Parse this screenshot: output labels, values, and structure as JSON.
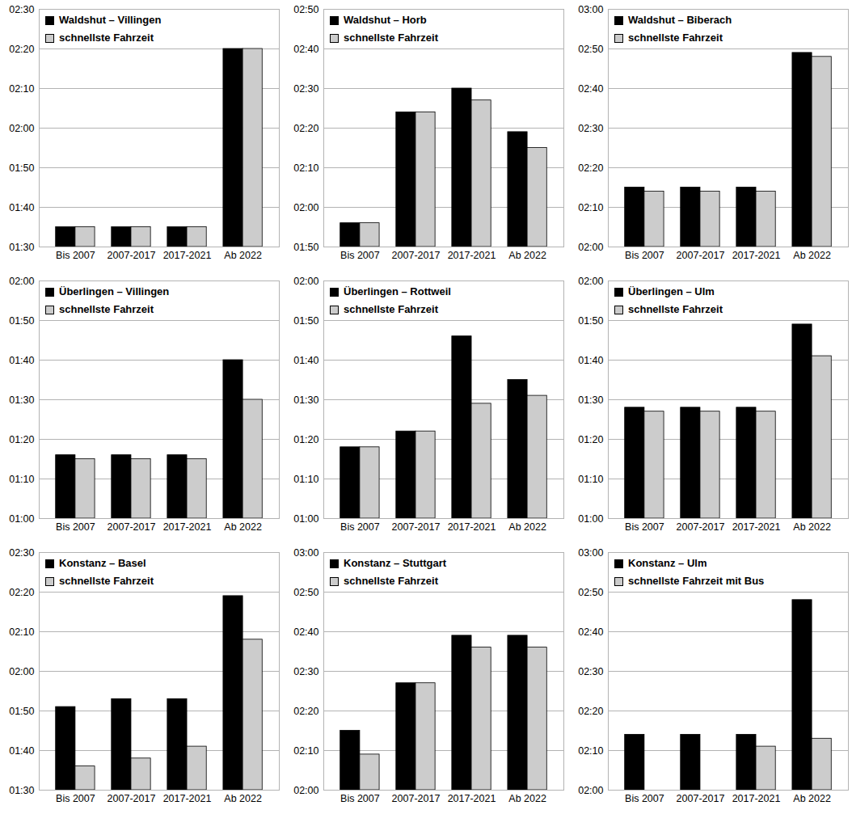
{
  "chart_data": [
    {
      "type": "bar",
      "categories": [
        "Bis 2007",
        "2007-2017",
        "2017-2021",
        "Ab 2022"
      ],
      "series": [
        {
          "name": "Waldshut – Villingen",
          "color": "#000000",
          "values": [
            95,
            95,
            95,
            140
          ]
        },
        {
          "name": "schnellste Fahrzeit",
          "color": "#cccccc",
          "values": [
            95,
            95,
            95,
            140
          ]
        }
      ],
      "ylim": [
        90,
        150
      ],
      "yticks": [
        {
          "value": 90,
          "label": "01:30"
        },
        {
          "value": 100,
          "label": "01:40"
        },
        {
          "value": 110,
          "label": "01:50"
        },
        {
          "value": 120,
          "label": "02:00"
        },
        {
          "value": 130,
          "label": "02:10"
        },
        {
          "value": 140,
          "label": "02:20"
        },
        {
          "value": 150,
          "label": "02:30"
        }
      ],
      "grid": true,
      "legend": "top-left"
    },
    {
      "type": "bar",
      "categories": [
        "Bis 2007",
        "2007-2017",
        "2017-2021",
        "Ab 2022"
      ],
      "series": [
        {
          "name": "Waldshut – Horb",
          "color": "#000000",
          "values": [
            116,
            144,
            150,
            139
          ]
        },
        {
          "name": "schnellste Fahrzeit",
          "color": "#cccccc",
          "values": [
            116,
            144,
            147,
            135
          ]
        }
      ],
      "ylim": [
        110,
        170
      ],
      "yticks": [
        {
          "value": 110,
          "label": "01:50"
        },
        {
          "value": 120,
          "label": "02:00"
        },
        {
          "value": 130,
          "label": "02:10"
        },
        {
          "value": 140,
          "label": "02:20"
        },
        {
          "value": 150,
          "label": "02:30"
        },
        {
          "value": 160,
          "label": "02:40"
        },
        {
          "value": 170,
          "label": "02:50"
        }
      ],
      "grid": true,
      "legend": "top-left"
    },
    {
      "type": "bar",
      "categories": [
        "Bis 2007",
        "2007-2017",
        "2017-2021",
        "Ab 2022"
      ],
      "series": [
        {
          "name": "Waldshut – Biberach",
          "color": "#000000",
          "values": [
            135,
            135,
            135,
            169
          ]
        },
        {
          "name": "schnellste Fahrzeit",
          "color": "#cccccc",
          "values": [
            134,
            134,
            134,
            168
          ]
        }
      ],
      "ylim": [
        120,
        180
      ],
      "yticks": [
        {
          "value": 120,
          "label": "02:00"
        },
        {
          "value": 130,
          "label": "02:10"
        },
        {
          "value": 140,
          "label": "02:20"
        },
        {
          "value": 150,
          "label": "02:30"
        },
        {
          "value": 160,
          "label": "02:40"
        },
        {
          "value": 170,
          "label": "02:50"
        },
        {
          "value": 180,
          "label": "03:00"
        }
      ],
      "grid": true,
      "legend": "top-left"
    },
    {
      "type": "bar",
      "categories": [
        "Bis 2007",
        "2007-2017",
        "2017-2021",
        "Ab 2022"
      ],
      "series": [
        {
          "name": "Überlingen – Villingen",
          "color": "#000000",
          "values": [
            76,
            76,
            76,
            100
          ]
        },
        {
          "name": "schnellste Fahrzeit",
          "color": "#cccccc",
          "values": [
            75,
            75,
            75,
            90
          ]
        }
      ],
      "ylim": [
        60,
        120
      ],
      "yticks": [
        {
          "value": 60,
          "label": "01:00"
        },
        {
          "value": 70,
          "label": "01:10"
        },
        {
          "value": 80,
          "label": "01:20"
        },
        {
          "value": 90,
          "label": "01:30"
        },
        {
          "value": 100,
          "label": "01:40"
        },
        {
          "value": 110,
          "label": "01:50"
        },
        {
          "value": 120,
          "label": "02:00"
        }
      ],
      "grid": true,
      "legend": "top-left"
    },
    {
      "type": "bar",
      "categories": [
        "Bis 2007",
        "2007-2017",
        "2017-2021",
        "Ab 2022"
      ],
      "series": [
        {
          "name": "Überlingen – Rottweil",
          "color": "#000000",
          "values": [
            78,
            82,
            106,
            95
          ]
        },
        {
          "name": "schnellste Fahrzeit",
          "color": "#cccccc",
          "values": [
            78,
            82,
            89,
            91
          ]
        }
      ],
      "ylim": [
        60,
        120
      ],
      "yticks": [
        {
          "value": 60,
          "label": "01:00"
        },
        {
          "value": 70,
          "label": "01:10"
        },
        {
          "value": 80,
          "label": "01:20"
        },
        {
          "value": 90,
          "label": "01:30"
        },
        {
          "value": 100,
          "label": "01:40"
        },
        {
          "value": 110,
          "label": "01:50"
        },
        {
          "value": 120,
          "label": "02:00"
        }
      ],
      "grid": true,
      "legend": "top-left"
    },
    {
      "type": "bar",
      "categories": [
        "Bis 2007",
        "2007-2017",
        "2017-2021",
        "Ab 2022"
      ],
      "series": [
        {
          "name": "Überlingen – Ulm",
          "color": "#000000",
          "values": [
            88,
            88,
            88,
            109
          ]
        },
        {
          "name": "schnellste Fahrzeit",
          "color": "#cccccc",
          "values": [
            87,
            87,
            87,
            101
          ]
        }
      ],
      "ylim": [
        60,
        120
      ],
      "yticks": [
        {
          "value": 60,
          "label": "01:00"
        },
        {
          "value": 70,
          "label": "01:10"
        },
        {
          "value": 80,
          "label": "01:20"
        },
        {
          "value": 90,
          "label": "01:30"
        },
        {
          "value": 100,
          "label": "01:40"
        },
        {
          "value": 110,
          "label": "01:50"
        },
        {
          "value": 120,
          "label": "02:00"
        }
      ],
      "grid": true,
      "legend": "top-left"
    },
    {
      "type": "bar",
      "categories": [
        "Bis 2007",
        "2007-2017",
        "2017-2021",
        "Ab 2022"
      ],
      "series": [
        {
          "name": "Konstanz – Basel",
          "color": "#000000",
          "values": [
            111,
            113,
            113,
            139
          ]
        },
        {
          "name": "schnellste Fahrzeit",
          "color": "#cccccc",
          "values": [
            96,
            98,
            101,
            128
          ]
        }
      ],
      "ylim": [
        90,
        150
      ],
      "yticks": [
        {
          "value": 90,
          "label": "01:30"
        },
        {
          "value": 100,
          "label": "01:40"
        },
        {
          "value": 110,
          "label": "01:50"
        },
        {
          "value": 120,
          "label": "02:00"
        },
        {
          "value": 130,
          "label": "02:10"
        },
        {
          "value": 140,
          "label": "02:20"
        },
        {
          "value": 150,
          "label": "02:30"
        }
      ],
      "grid": true,
      "legend": "top-left"
    },
    {
      "type": "bar",
      "categories": [
        "Bis 2007",
        "2007-2017",
        "2017-2021",
        "Ab 2022"
      ],
      "series": [
        {
          "name": "Konstanz – Stuttgart",
          "color": "#000000",
          "values": [
            135,
            147,
            159,
            159
          ]
        },
        {
          "name": "schnellste Fahrzeit",
          "color": "#cccccc",
          "values": [
            129,
            147,
            156,
            156
          ]
        }
      ],
      "ylim": [
        120,
        180
      ],
      "yticks": [
        {
          "value": 120,
          "label": "02:00"
        },
        {
          "value": 130,
          "label": "02:10"
        },
        {
          "value": 140,
          "label": "02:20"
        },
        {
          "value": 150,
          "label": "02:30"
        },
        {
          "value": 160,
          "label": "02:40"
        },
        {
          "value": 170,
          "label": "02:50"
        },
        {
          "value": 180,
          "label": "03:00"
        }
      ],
      "grid": true,
      "legend": "top-left"
    },
    {
      "type": "bar",
      "categories": [
        "Bis 2007",
        "2007-2017",
        "2017-2021",
        "Ab 2022"
      ],
      "series": [
        {
          "name": "Konstanz – Ulm",
          "color": "#000000",
          "values": [
            134,
            134,
            134,
            168
          ]
        },
        {
          "name": "schnellste Fahrzeit mit Bus",
          "color": "#cccccc",
          "values": [
            null,
            null,
            131,
            133
          ]
        }
      ],
      "ylim": [
        120,
        180
      ],
      "yticks": [
        {
          "value": 120,
          "label": "02:00"
        },
        {
          "value": 130,
          "label": "02:10"
        },
        {
          "value": 140,
          "label": "02:20"
        },
        {
          "value": 150,
          "label": "02:30"
        },
        {
          "value": 160,
          "label": "02:40"
        },
        {
          "value": 170,
          "label": "02:50"
        },
        {
          "value": 180,
          "label": "03:00"
        }
      ],
      "grid": true,
      "legend": "top-left"
    }
  ]
}
